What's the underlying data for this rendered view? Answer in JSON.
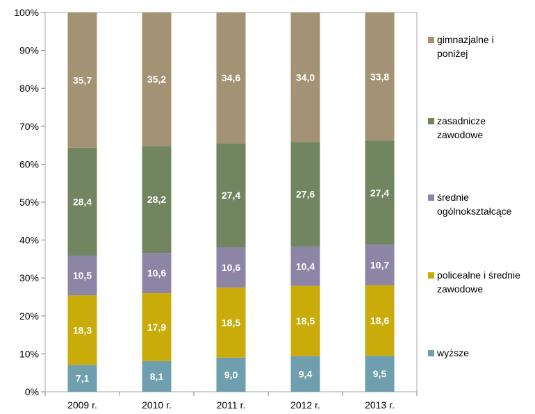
{
  "chart_data": {
    "type": "bar",
    "stacked": true,
    "orientation": "vertical",
    "categories": [
      "2009 r.",
      "2010 r.",
      "2011 r.",
      "2012 r.",
      "2013 r."
    ],
    "series": [
      {
        "name": "wyższe",
        "values": [
          7.1,
          8.1,
          9.0,
          9.4,
          9.5
        ],
        "labels": [
          "7,1",
          "8,1",
          "9,0",
          "9,4",
          "9,5"
        ],
        "color": "#6f9fae"
      },
      {
        "name": "policealne i średnie zawodowe",
        "values": [
          18.3,
          17.9,
          18.5,
          18.5,
          18.6
        ],
        "labels": [
          "18,3",
          "17,9",
          "18,5",
          "18,5",
          "18,6"
        ],
        "color": "#c9ab0a"
      },
      {
        "name": "średnie ogólnokształcące",
        "values": [
          10.5,
          10.6,
          10.6,
          10.4,
          10.7
        ],
        "labels": [
          "10,5",
          "10,6",
          "10,6",
          "10,4",
          "10,7"
        ],
        "color": "#8c85a6"
      },
      {
        "name": "zasadnicze zawodowe",
        "values": [
          28.4,
          28.2,
          27.4,
          27.6,
          27.4
        ],
        "labels": [
          "28,4",
          "28,2",
          "27,4",
          "27,6",
          "27,4"
        ],
        "color": "#718560"
      },
      {
        "name": "gimnazjalne i poniżej",
        "values": [
          35.7,
          35.2,
          34.6,
          34.0,
          33.8
        ],
        "labels": [
          "35,7",
          "35,2",
          "34,6",
          "34,0",
          "33,8"
        ],
        "color": "#a39374"
      }
    ],
    "y_ticks": [
      "0%",
      "10%",
      "20%",
      "30%",
      "40%",
      "50%",
      "60%",
      "70%",
      "80%",
      "90%",
      "100%"
    ],
    "ylim": [
      0,
      100
    ],
    "grid": false,
    "legend": {
      "placement": "right",
      "entries": [
        {
          "lines": [
            "gimnazjalne i",
            "poniżej"
          ]
        },
        {
          "lines": [
            "zasadnicze",
            "zawodowe"
          ]
        },
        {
          "lines": [
            "średnie",
            "ogólnokształcące"
          ]
        },
        {
          "lines": [
            "policealne i średnie",
            "zawodowe"
          ]
        },
        {
          "lines": [
            "wyższe"
          ]
        }
      ]
    }
  }
}
